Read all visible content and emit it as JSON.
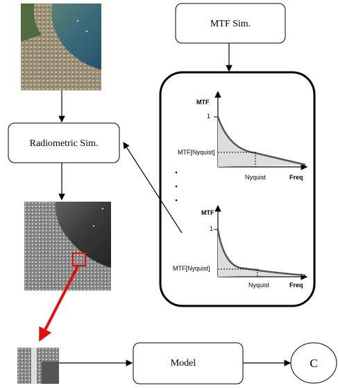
{
  "nodes": [
    {
      "label": "MTF Sim."
    },
    {
      "label": "Radiometric Sim."
    },
    {
      "label": "Model"
    },
    {
      "label": "C"
    }
  ],
  "plots": [
    {
      "y_label": "MTF",
      "y_tick": "1",
      "y_marker": "MTF[Nyquist]",
      "x_marker": "Nyquist",
      "x_label": "Freq"
    },
    {
      "y_label": "MTF",
      "y_tick": "1",
      "y_marker": "MTF[Nyquist]",
      "x_marker": "Nyquist",
      "x_label": "Freq"
    }
  ]
}
